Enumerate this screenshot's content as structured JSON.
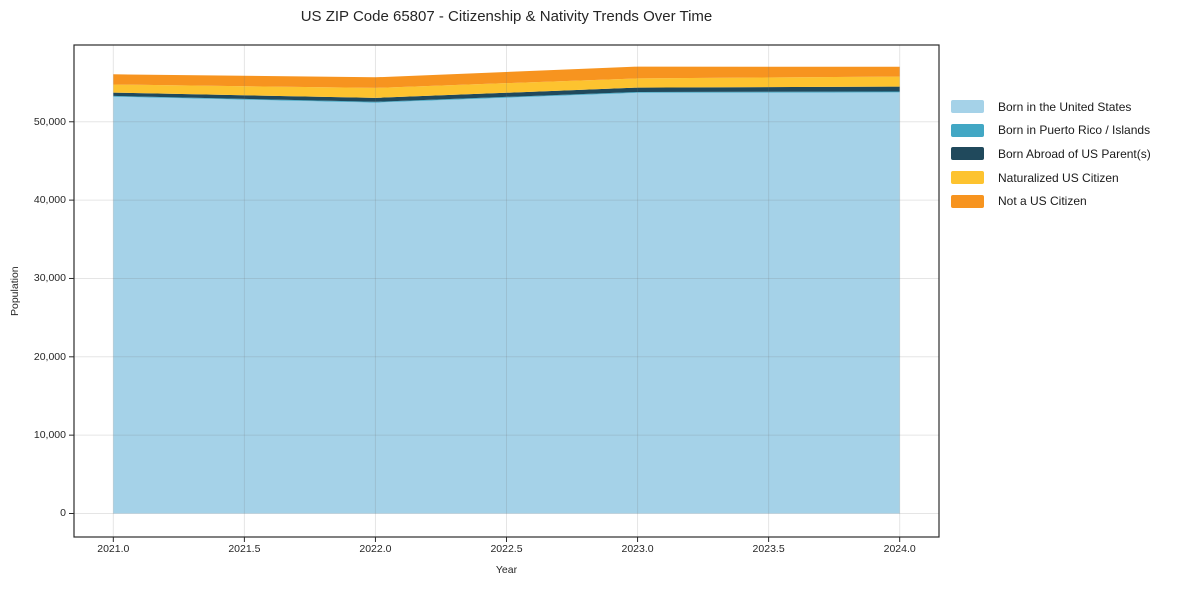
{
  "chart_data": {
    "type": "area",
    "stacked": true,
    "title": "US ZIP Code 65807 - Citizenship & Nativity Trends Over Time",
    "xlabel": "Year",
    "ylabel": "Population",
    "x": [
      2021,
      2022,
      2023,
      2024
    ],
    "series": [
      {
        "name": "Born in the United States",
        "color": "#a5d2e8",
        "values": [
          53200,
          52450,
          53700,
          53750
        ]
      },
      {
        "name": "Born in Puerto Rico / Islands",
        "color": "#42a7c4",
        "values": [
          100,
          100,
          100,
          120
        ]
      },
      {
        "name": "Born Abroad of US Parent(s)",
        "color": "#20495c",
        "values": [
          430,
          500,
          560,
          620
        ]
      },
      {
        "name": "Naturalized US Citizen",
        "color": "#fdc32f",
        "values": [
          1030,
          1280,
          1180,
          1280
        ]
      },
      {
        "name": "Not a US Citizen",
        "color": "#f7941f",
        "values": [
          1300,
          1350,
          1500,
          1250
        ]
      }
    ],
    "totals": [
      56060,
      55680,
      57040,
      57020
    ],
    "xlim": [
      2020.85,
      2024.15
    ],
    "ylim": [
      -3000,
      59800
    ],
    "x_ticks": [
      {
        "value": 2021.0,
        "label": "2021.0"
      },
      {
        "value": 2021.5,
        "label": "2021.5"
      },
      {
        "value": 2022.0,
        "label": "2022.0"
      },
      {
        "value": 2022.5,
        "label": "2022.5"
      },
      {
        "value": 2023.0,
        "label": "2023.0"
      },
      {
        "value": 2023.5,
        "label": "2023.5"
      },
      {
        "value": 2024.0,
        "label": "2024.0"
      }
    ],
    "y_ticks": [
      {
        "value": 0,
        "label": "0"
      },
      {
        "value": 10000,
        "label": "10,000"
      },
      {
        "value": 20000,
        "label": "20,000"
      },
      {
        "value": 30000,
        "label": "30,000"
      },
      {
        "value": 40000,
        "label": "40,000"
      },
      {
        "value": 50000,
        "label": "50,000"
      }
    ],
    "grid": true,
    "legend_position": "center-right-outside",
    "frame_color": "#2b2b2b",
    "background_color": "#ffffff"
  }
}
